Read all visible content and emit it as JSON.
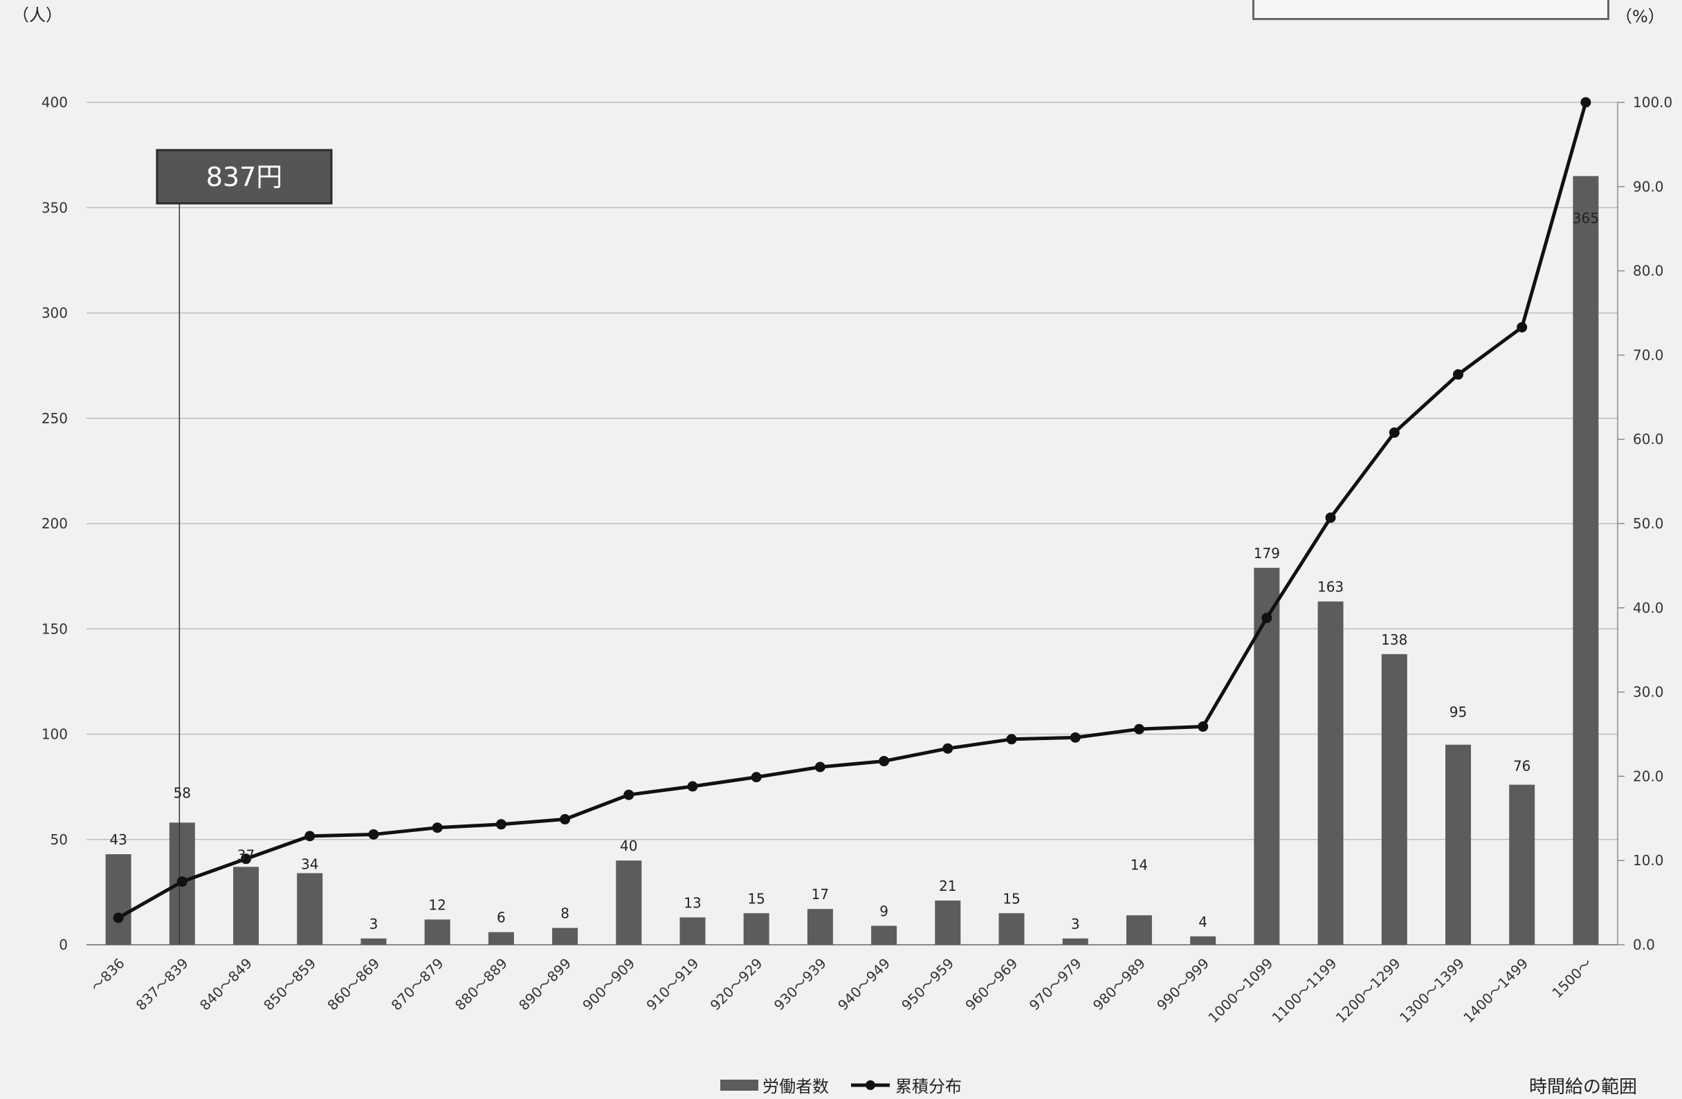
{
  "left_unit": "（人）",
  "right_unit": "（%）",
  "x_axis_title": "時間給の範囲",
  "annotation": {
    "label": "837円",
    "category": "837〜839"
  },
  "legend": {
    "bars": "労働者数",
    "line": "累積分布"
  },
  "colors": {
    "bar": "#5c5c5c",
    "line": "#111111",
    "grid": "#bdbdbd",
    "annotation_fill": "#555555"
  },
  "chart_data": {
    "type": "bar",
    "categories": [
      "〜836",
      "837〜839",
      "840〜849",
      "850〜859",
      "860〜869",
      "870〜879",
      "880〜889",
      "890〜899",
      "900〜909",
      "910〜919",
      "920〜929",
      "930〜939",
      "940〜949",
      "950〜959",
      "960〜969",
      "970〜979",
      "980〜989",
      "990〜999",
      "1000〜1099",
      "1100〜1199",
      "1200〜1299",
      "1300〜1399",
      "1400〜1499",
      "1500〜"
    ],
    "series": [
      {
        "name": "労働者数",
        "type": "bar",
        "axis": "left",
        "values": [
          43,
          58,
          37,
          34,
          3,
          12,
          6,
          8,
          40,
          13,
          15,
          17,
          9,
          21,
          15,
          3,
          14,
          4,
          179,
          163,
          138,
          95,
          76,
          365
        ]
      },
      {
        "name": "累積分布",
        "type": "line",
        "axis": "right",
        "values": [
          3.2,
          7.5,
          10.2,
          12.9,
          13.1,
          13.9,
          14.3,
          14.9,
          17.8,
          18.8,
          19.9,
          21.1,
          21.8,
          23.3,
          24.4,
          24.6,
          25.6,
          25.9,
          38.8,
          50.7,
          60.8,
          67.7,
          73.3,
          100.0
        ]
      }
    ],
    "y_left": {
      "ylim": [
        0,
        400
      ],
      "ticks": [
        "0",
        "50",
        "100",
        "150",
        "200",
        "250",
        "300",
        "350",
        "400"
      ]
    },
    "y_right": {
      "ylim": [
        0,
        100
      ],
      "ticks": [
        "0.0",
        "10.0",
        "20.0",
        "30.0",
        "40.0",
        "50.0",
        "60.0",
        "70.0",
        "80.0",
        "90.0",
        "100.0"
      ]
    },
    "grid": true,
    "legend_position": "bottom"
  }
}
